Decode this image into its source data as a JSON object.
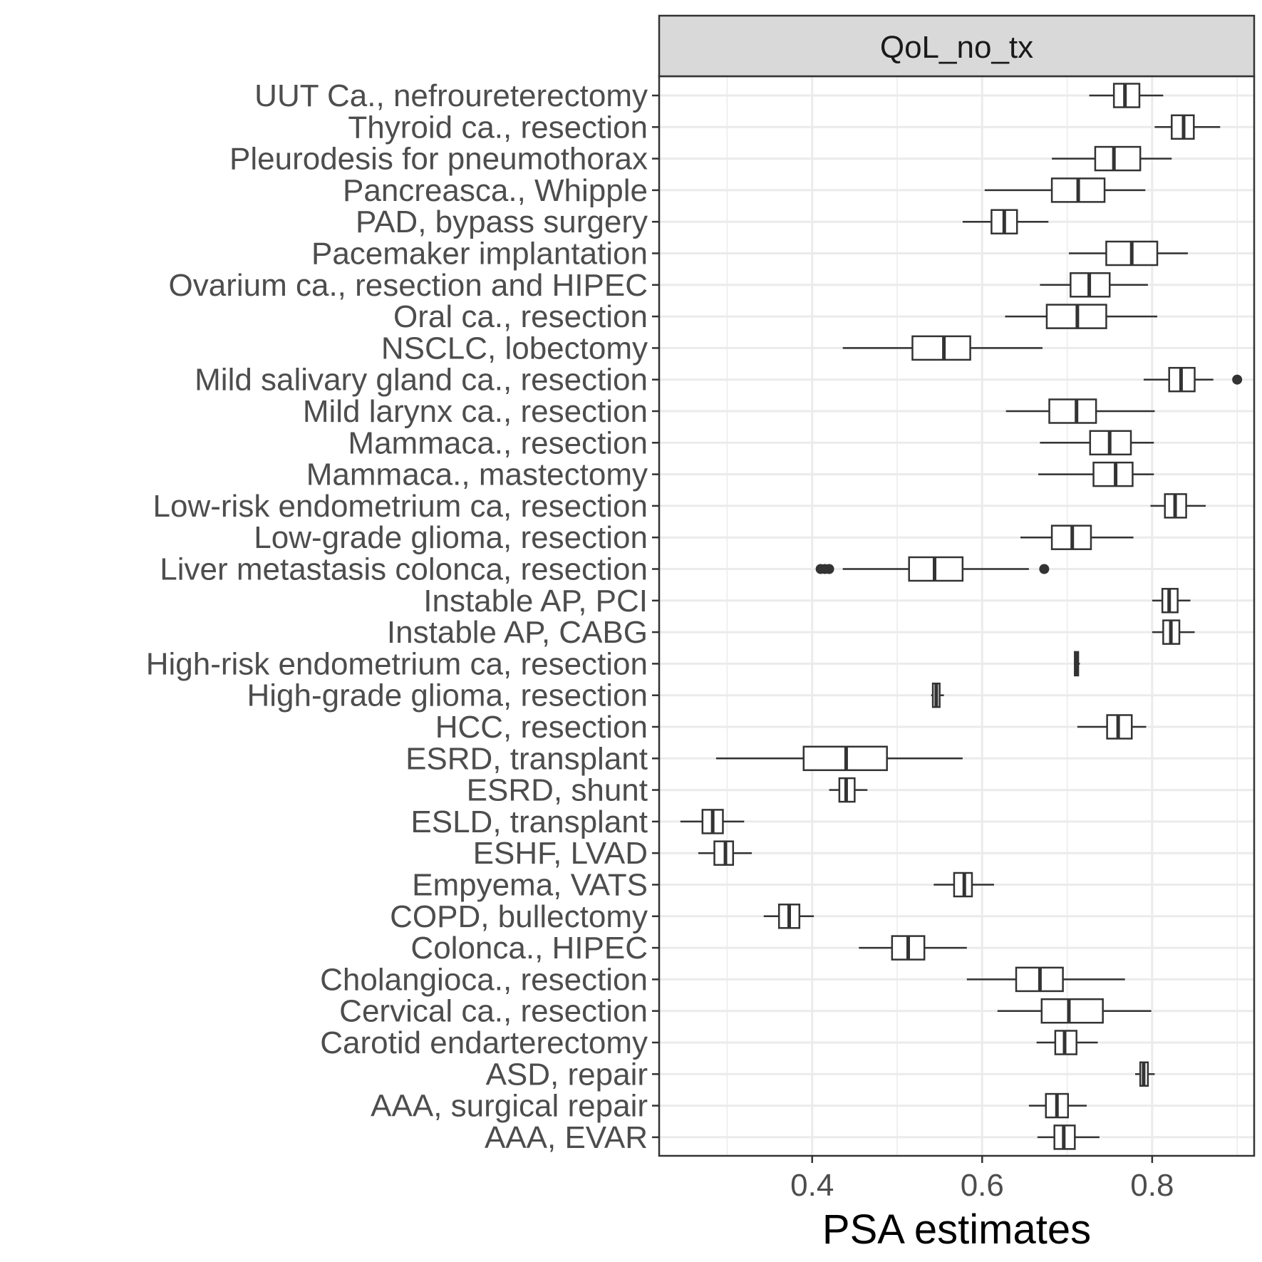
{
  "chart_data": {
    "type": "boxplot",
    "orientation": "horizontal",
    "facet_label": "QoL_no_tx",
    "xlabel": "PSA estimates",
    "ylabel": "",
    "xlim": [
      0.22,
      0.92
    ],
    "x_ticks": [
      0.4,
      0.6,
      0.8
    ],
    "x_tick_labels": [
      "0.4",
      "0.6",
      "0.8"
    ],
    "grid": true,
    "colors": {
      "box_line": "#333333",
      "grid": "#ebebeb",
      "strip_fill": "#d9d9d9",
      "panel_border": "#333333"
    },
    "categories": [
      "UUT Ca., nefroureterectomy",
      "Thyroid ca., resection",
      "Pleurodesis for pneumothorax",
      "Pancreasca., Whipple",
      "PAD, bypass surgery",
      "Pacemaker implantation",
      "Ovarium ca., resection and HIPEC",
      "Oral ca., resection",
      "NSCLC, lobectomy",
      "Mild salivary gland ca., resection",
      "Mild larynx ca., resection",
      "Mammaca., resection",
      "Mammaca., mastectomy",
      "Low-risk endometrium ca, resection",
      "Low-grade glioma, resection",
      "Liver metastasis colonca, resection",
      "Instable AP, PCI",
      "Instable AP, CABG",
      "High-risk endometrium ca, resection",
      "High-grade glioma, resection",
      "HCC, resection",
      "ESRD, transplant",
      "ESRD, shunt",
      "ESLD, transplant",
      "ESHF, LVAD",
      "Empyema, VATS",
      "COPD, bullectomy",
      "Colonca., HIPEC",
      "Cholangioca., resection",
      "Cervical ca., resection",
      "Carotid endarterectomy",
      "ASD, repair",
      "AAA, surgical repair",
      "AAA, EVAR"
    ],
    "boxes": [
      {
        "min": 0.726,
        "q1": 0.755,
        "median": 0.768,
        "q3": 0.785,
        "max": 0.813,
        "outliers": []
      },
      {
        "min": 0.803,
        "q1": 0.823,
        "median": 0.837,
        "q3": 0.849,
        "max": 0.88,
        "outliers": []
      },
      {
        "min": 0.682,
        "q1": 0.733,
        "median": 0.755,
        "q3": 0.786,
        "max": 0.823,
        "outliers": []
      },
      {
        "min": 0.603,
        "q1": 0.682,
        "median": 0.713,
        "q3": 0.744,
        "max": 0.792,
        "outliers": []
      },
      {
        "min": 0.577,
        "q1": 0.611,
        "median": 0.626,
        "q3": 0.641,
        "max": 0.678,
        "outliers": []
      },
      {
        "min": 0.702,
        "q1": 0.746,
        "median": 0.776,
        "q3": 0.806,
        "max": 0.842,
        "outliers": []
      },
      {
        "min": 0.668,
        "q1": 0.704,
        "median": 0.726,
        "q3": 0.75,
        "max": 0.795,
        "outliers": []
      },
      {
        "min": 0.627,
        "q1": 0.676,
        "median": 0.712,
        "q3": 0.746,
        "max": 0.806,
        "outliers": []
      },
      {
        "min": 0.436,
        "q1": 0.518,
        "median": 0.555,
        "q3": 0.586,
        "max": 0.671,
        "outliers": []
      },
      {
        "min": 0.79,
        "q1": 0.82,
        "median": 0.834,
        "q3": 0.85,
        "max": 0.872,
        "outliers": [
          0.9
        ]
      },
      {
        "min": 0.628,
        "q1": 0.679,
        "median": 0.711,
        "q3": 0.734,
        "max": 0.803,
        "outliers": []
      },
      {
        "min": 0.668,
        "q1": 0.727,
        "median": 0.75,
        "q3": 0.775,
        "max": 0.802,
        "outliers": []
      },
      {
        "min": 0.666,
        "q1": 0.731,
        "median": 0.757,
        "q3": 0.777,
        "max": 0.802,
        "outliers": []
      },
      {
        "min": 0.798,
        "q1": 0.815,
        "median": 0.827,
        "q3": 0.84,
        "max": 0.863,
        "outliers": []
      },
      {
        "min": 0.645,
        "q1": 0.682,
        "median": 0.706,
        "q3": 0.728,
        "max": 0.778,
        "outliers": []
      },
      {
        "min": 0.436,
        "q1": 0.514,
        "median": 0.544,
        "q3": 0.577,
        "max": 0.655,
        "outliers": [
          0.41,
          0.415,
          0.42,
          0.673
        ]
      },
      {
        "min": 0.8,
        "q1": 0.812,
        "median": 0.82,
        "q3": 0.83,
        "max": 0.845,
        "outliers": []
      },
      {
        "min": 0.8,
        "q1": 0.813,
        "median": 0.822,
        "q3": 0.832,
        "max": 0.85,
        "outliers": []
      },
      {
        "min": 0.708,
        "q1": 0.709,
        "median": 0.711,
        "q3": 0.713,
        "max": 0.715,
        "outliers": []
      },
      {
        "min": 0.54,
        "q1": 0.542,
        "median": 0.546,
        "q3": 0.55,
        "max": 0.555,
        "outliers": []
      },
      {
        "min": 0.712,
        "q1": 0.747,
        "median": 0.76,
        "q3": 0.776,
        "max": 0.793,
        "outliers": []
      },
      {
        "min": 0.287,
        "q1": 0.39,
        "median": 0.44,
        "q3": 0.488,
        "max": 0.577,
        "outliers": []
      },
      {
        "min": 0.42,
        "q1": 0.432,
        "median": 0.44,
        "q3": 0.45,
        "max": 0.465,
        "outliers": []
      },
      {
        "min": 0.245,
        "q1": 0.271,
        "median": 0.283,
        "q3": 0.295,
        "max": 0.32,
        "outliers": []
      },
      {
        "min": 0.266,
        "q1": 0.285,
        "median": 0.298,
        "q3": 0.307,
        "max": 0.329,
        "outliers": []
      },
      {
        "min": 0.543,
        "q1": 0.567,
        "median": 0.579,
        "q3": 0.588,
        "max": 0.614,
        "outliers": []
      },
      {
        "min": 0.343,
        "q1": 0.361,
        "median": 0.373,
        "q3": 0.385,
        "max": 0.402,
        "outliers": []
      },
      {
        "min": 0.455,
        "q1": 0.494,
        "median": 0.513,
        "q3": 0.532,
        "max": 0.582,
        "outliers": []
      },
      {
        "min": 0.582,
        "q1": 0.64,
        "median": 0.668,
        "q3": 0.695,
        "max": 0.768,
        "outliers": []
      },
      {
        "min": 0.618,
        "q1": 0.67,
        "median": 0.702,
        "q3": 0.742,
        "max": 0.799,
        "outliers": []
      },
      {
        "min": 0.664,
        "q1": 0.686,
        "median": 0.697,
        "q3": 0.711,
        "max": 0.736,
        "outliers": []
      },
      {
        "min": 0.78,
        "q1": 0.786,
        "median": 0.79,
        "q3": 0.795,
        "max": 0.803,
        "outliers": []
      },
      {
        "min": 0.655,
        "q1": 0.675,
        "median": 0.688,
        "q3": 0.701,
        "max": 0.723,
        "outliers": []
      },
      {
        "min": 0.665,
        "q1": 0.685,
        "median": 0.696,
        "q3": 0.709,
        "max": 0.738,
        "outliers": []
      }
    ]
  }
}
